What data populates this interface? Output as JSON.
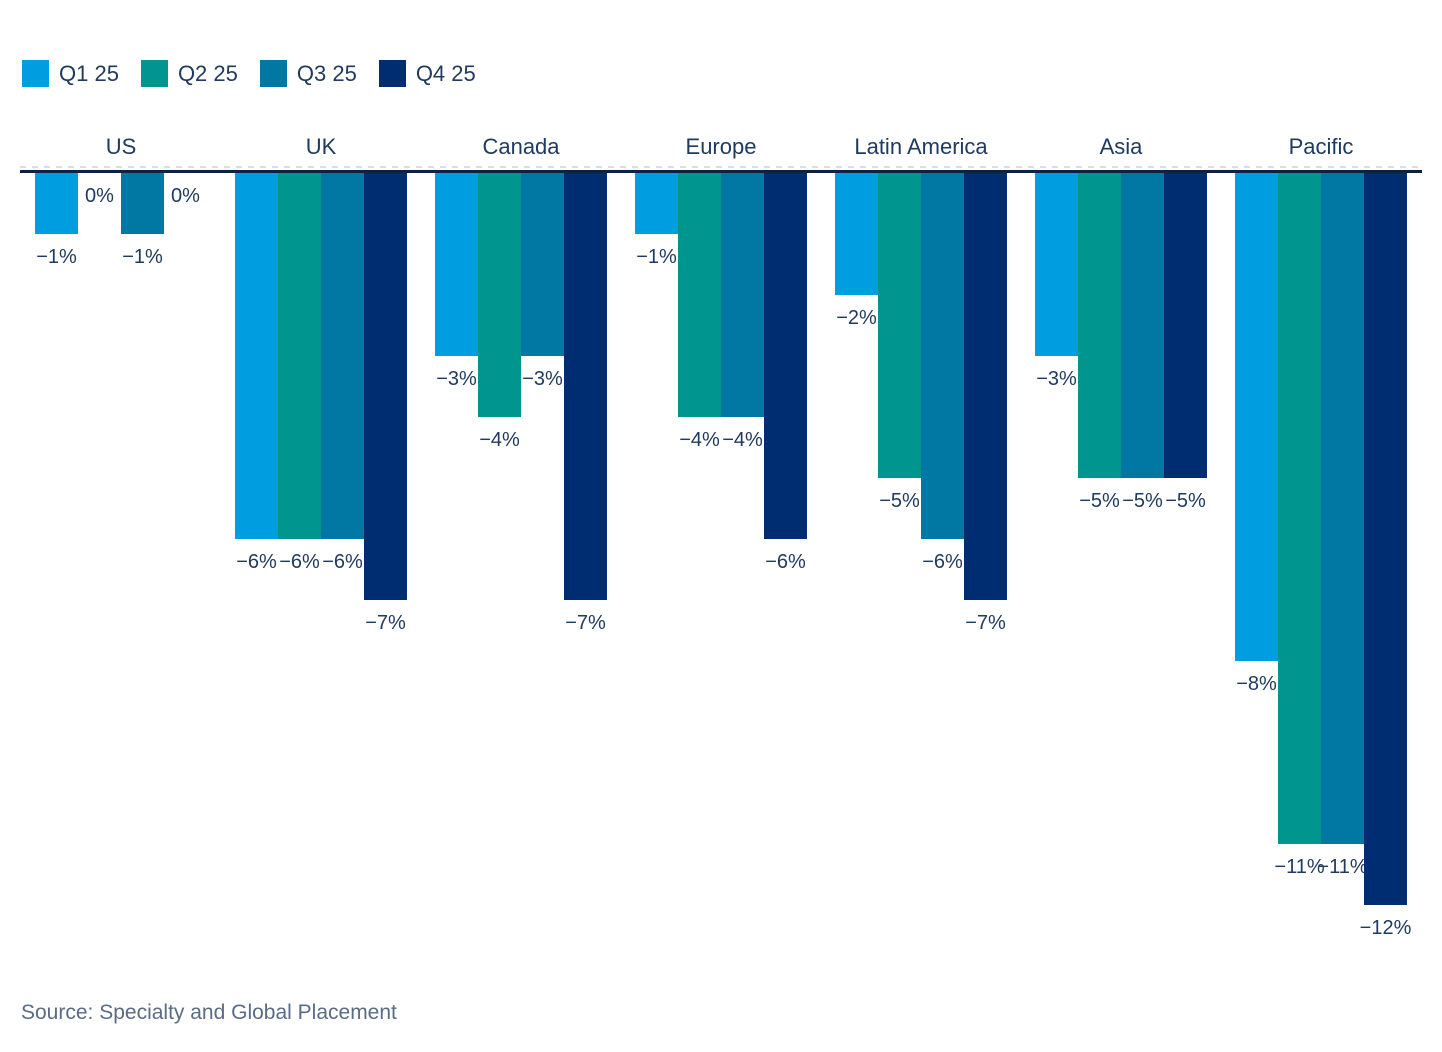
{
  "source": "Source: Specialty and Global Placement",
  "colors": {
    "q1": "#009DE0",
    "q2": "#00968F",
    "q3": "#0078A3",
    "q4": "#002D72",
    "text_navy": "#203A60",
    "axis_line": "#0C2340",
    "source_text": "#5B6B85"
  },
  "chart_data": {
    "type": "bar",
    "title": "",
    "categories": [
      "US",
      "UK",
      "Canada",
      "Europe",
      "Latin America",
      "Asia",
      "Pacific"
    ],
    "series": [
      {
        "name": "Q1 25",
        "color": "#009DE0",
        "values": [
          -1,
          -6,
          -3,
          -1,
          -2,
          -3,
          -8
        ]
      },
      {
        "name": "Q2 25",
        "color": "#00968F",
        "values": [
          0,
          -6,
          -4,
          -4,
          -5,
          -5,
          -11
        ]
      },
      {
        "name": "Q3 25",
        "color": "#0078A3",
        "values": [
          -1,
          -6,
          -3,
          -4,
          -6,
          -5,
          -11
        ]
      },
      {
        "name": "Q4 25",
        "color": "#002D72",
        "values": [
          0,
          -7,
          -7,
          -6,
          -7,
          -5,
          -12
        ]
      }
    ],
    "unit": "%",
    "minus_glyph": "−",
    "ylim": [
      -12,
      0
    ],
    "grid": false,
    "legend_position": "top-left",
    "value_labels": "below-bar, zero values labeled 0% just under axis"
  }
}
